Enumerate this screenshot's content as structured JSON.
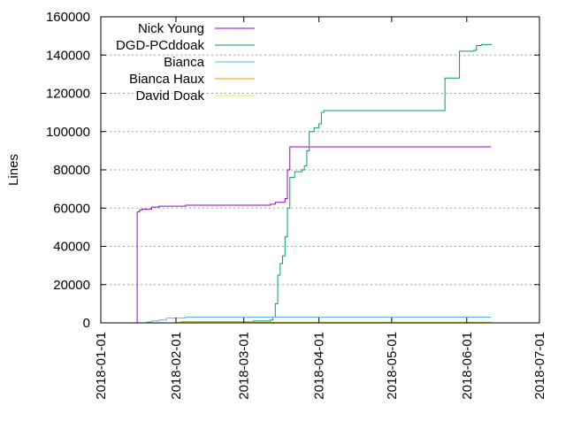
{
  "chart_data": {
    "type": "line",
    "title": "",
    "xlabel": "",
    "ylabel": "Lines",
    "xlim": [
      "2018-01-01",
      "2018-07-01"
    ],
    "ylim": [
      0,
      160000
    ],
    "x_ticks": [
      "2018-01-01",
      "2018-02-01",
      "2018-03-01",
      "2018-04-01",
      "2018-05-01",
      "2018-06-01",
      "2018-07-01"
    ],
    "y_ticks": [
      0,
      20000,
      40000,
      60000,
      80000,
      100000,
      120000,
      140000,
      160000
    ],
    "y_tick_labels": [
      "0",
      "20000",
      "40000",
      "60000",
      "80000",
      "100000",
      "120000",
      "140000",
      "160000"
    ],
    "grid": "horizontal dotted",
    "legend_position": "top-left",
    "series": [
      {
        "name": "Nick Young",
        "color": "#9400d3",
        "x": [
          "2018-01-16",
          "2018-01-16",
          "2018-01-17",
          "2018-01-18",
          "2018-01-21",
          "2018-01-22",
          "2018-01-25",
          "2018-02-05",
          "2018-03-05",
          "2018-03-12",
          "2018-03-13",
          "2018-03-14",
          "2018-03-18",
          "2018-03-19",
          "2018-03-20",
          "2018-06-11"
        ],
        "y": [
          0,
          58000,
          59000,
          59500,
          59500,
          60500,
          61000,
          61500,
          61500,
          62000,
          62000,
          63000,
          65000,
          80000,
          92000,
          92000
        ]
      },
      {
        "name": "DGD-PCddoak",
        "color": "#009e73",
        "x": [
          "2018-01-17",
          "2018-02-03",
          "2018-03-05",
          "2018-03-12",
          "2018-03-13",
          "2018-03-14",
          "2018-03-15",
          "2018-03-16",
          "2018-03-17",
          "2018-03-18",
          "2018-03-19",
          "2018-03-20",
          "2018-03-22",
          "2018-03-25",
          "2018-03-26",
          "2018-03-27",
          "2018-03-28",
          "2018-03-30",
          "2018-04-01",
          "2018-04-02",
          "2018-04-03",
          "2018-05-23",
          "2018-05-28",
          "2018-05-29",
          "2018-06-01",
          "2018-06-04",
          "2018-06-05",
          "2018-06-07",
          "2018-06-11"
        ],
        "y": [
          0,
          500,
          1000,
          1500,
          3000,
          10000,
          25000,
          31000,
          35000,
          45000,
          60000,
          76000,
          79000,
          80000,
          82000,
          90000,
          100000,
          102000,
          104000,
          110000,
          111000,
          128000,
          128000,
          142000,
          142000,
          142500,
          145000,
          145500,
          146000
        ]
      },
      {
        "name": "Bianca",
        "color": "#56b4e9",
        "x": [
          "2018-01-16",
          "2018-01-20",
          "2018-01-22",
          "2018-01-25",
          "2018-01-28",
          "2018-02-05",
          "2018-06-11"
        ],
        "y": [
          0,
          500,
          1000,
          1500,
          2500,
          3000,
          3000
        ]
      },
      {
        "name": "Bianca Haux",
        "color": "#e69f00",
        "x": [
          "2018-01-16",
          "2018-02-01",
          "2018-06-11"
        ],
        "y": [
          0,
          300,
          400
        ]
      },
      {
        "name": "David Doak",
        "color": "#f0e442",
        "x": [
          "2018-01-16",
          "2018-02-01",
          "2018-06-11"
        ],
        "y": [
          0,
          200,
          300
        ]
      }
    ]
  }
}
